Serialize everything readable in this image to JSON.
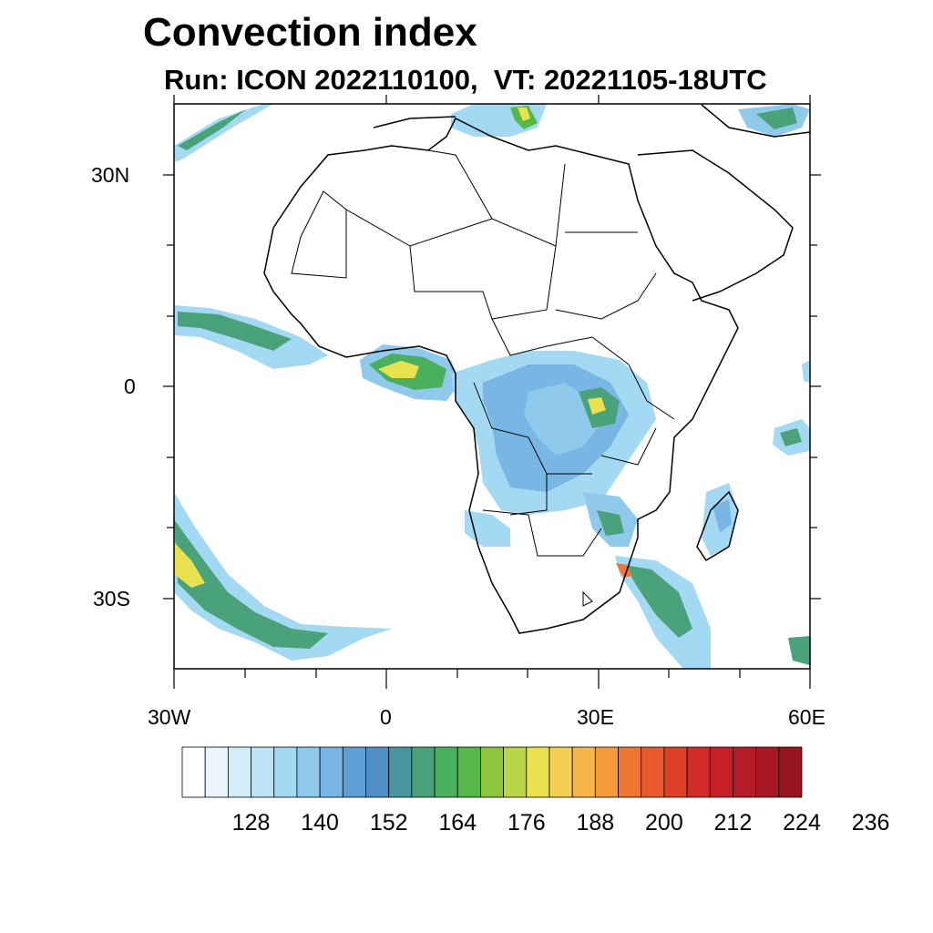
{
  "title": "Convection index",
  "subtitle": "Run: ICON 2022110100,  VT: 20221105-18UTC",
  "map": {
    "lon_range": [
      -30,
      60
    ],
    "lat_range": [
      -40,
      40
    ],
    "lat_labels": [
      "30N",
      "0",
      "30S"
    ],
    "lon_labels": [
      "30W",
      "0",
      "30E",
      "60E"
    ]
  },
  "colorbar": {
    "labels": [
      "128",
      "140",
      "152",
      "164",
      "176",
      "188",
      "200",
      "212",
      "224",
      "236"
    ],
    "colors": [
      "#ffffff",
      "#eaf6fc",
      "#d2ecf8",
      "#bce3f6",
      "#a4d9f4",
      "#8fc9ec",
      "#78b6e4",
      "#5f9fd6",
      "#4d8fc6",
      "#4a96a0",
      "#4aa27a",
      "#4bb05e",
      "#56b848",
      "#8cc63f",
      "#b9d448",
      "#e9e24e",
      "#f5cf52",
      "#f6b64a",
      "#f59a3b",
      "#ef7630",
      "#e65a2b",
      "#df4028",
      "#d52a2a",
      "#c81e2a",
      "#b81a26",
      "#a81722",
      "#981420"
    ]
  }
}
